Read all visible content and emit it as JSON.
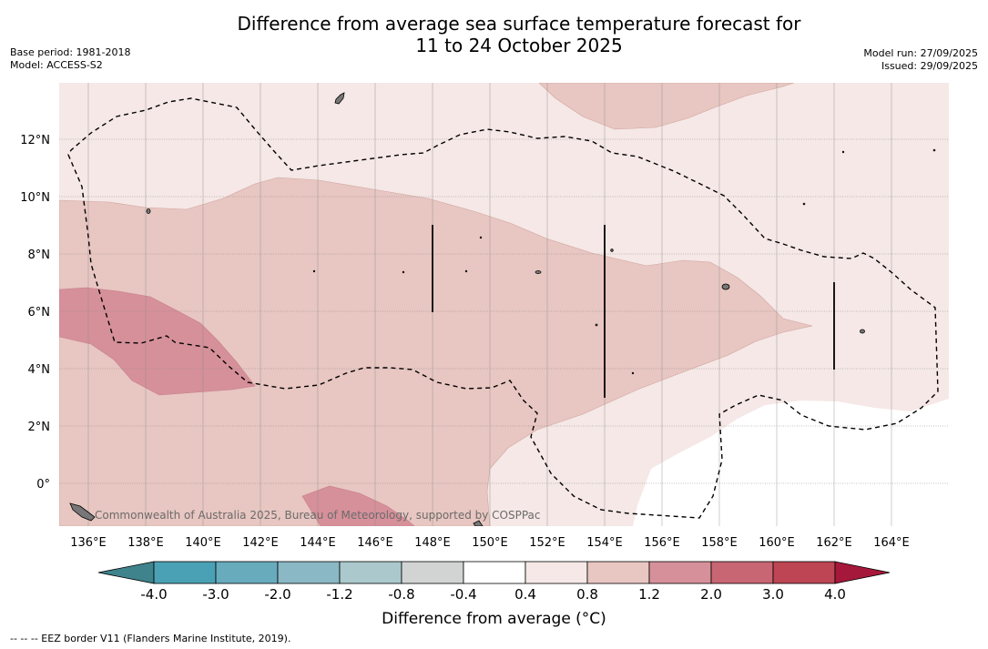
{
  "title_line1": "Difference from average sea surface temperature forecast for",
  "title_line2": "11 to 24 October 2025",
  "base_period": "Base period: 1981-2018",
  "model": "Model: ACCESS-S2",
  "model_run": "Model run: 27/09/2025",
  "issued": "Issued: 29/09/2025",
  "watermark": "Commonwealth of Australia 2025, Bureau of Meteorology, supported by COSPPac",
  "lon_labels": [
    "136°E",
    "138°E",
    "140°E",
    "142°E",
    "144°E",
    "146°E",
    "148°E",
    "150°E",
    "152°E",
    "154°E",
    "156°E",
    "158°E",
    "160°E",
    "162°E",
    "164°E"
  ],
  "lat_labels": [
    "12°N",
    "10°N",
    "8°N",
    "6°N",
    "4°N",
    "2°N",
    "0°"
  ],
  "colorbar": {
    "title": "Difference from average (°C)",
    "tick_labels": [
      "-4.0",
      "-3.0",
      "-2.0",
      "-1.2",
      "-0.8",
      "-0.4",
      "0.4",
      "0.8",
      "1.2",
      "2.0",
      "3.0",
      "4.0"
    ],
    "colors": [
      "#4aa1b5",
      "#68abbd",
      "#8ab8c4",
      "#abc9cd",
      "#d2d4d4",
      "#ffffff",
      "#f5e8e6",
      "#e8c6c1",
      "#d6909a",
      "#c86673",
      "#bd4554"
    ],
    "under_color": "#3f838c",
    "over_color": "#a6183b"
  },
  "footer": "--  --  -- EEZ border V11 (Flanders Marine Institute, 2019)."
}
